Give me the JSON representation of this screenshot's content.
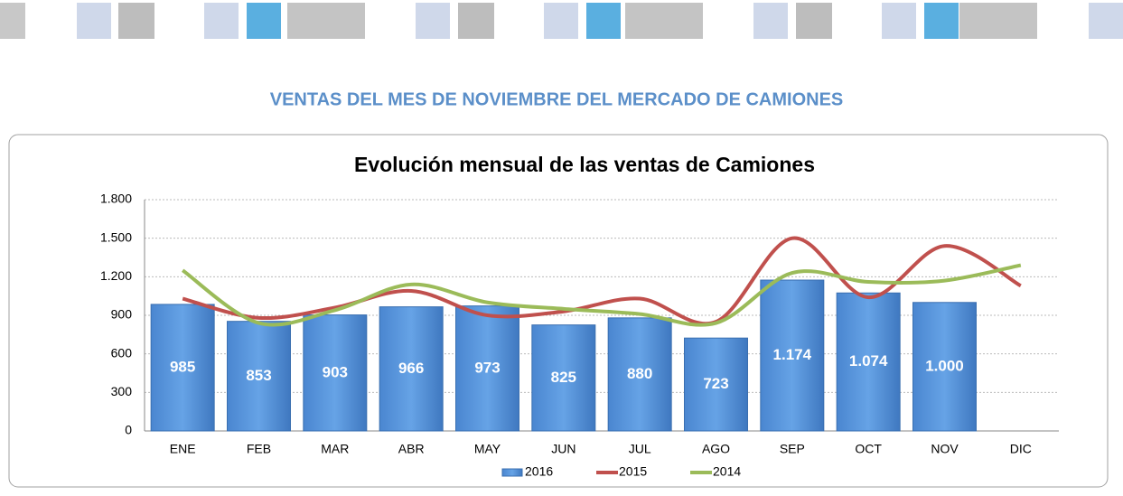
{
  "page_title": "VENTAS DEL MES DE NOVIEMBRE DEL MERCADO DE CAMIONES",
  "chart_data": {
    "type": "bar_line",
    "title": "Evolución mensual de las ventas de Camiones",
    "categories": [
      "ENE",
      "FEB",
      "MAR",
      "ABR",
      "MAY",
      "JUN",
      "JUL",
      "AGO",
      "SEP",
      "OCT",
      "NOV",
      "DIC"
    ],
    "series": [
      {
        "name": "2016",
        "type": "bar",
        "color": "#5b9bd5",
        "values": [
          985,
          853,
          903,
          966,
          973,
          825,
          880,
          723,
          1174,
          1074,
          1000,
          null
        ],
        "value_labels": [
          "985",
          "853",
          "903",
          "966",
          "973",
          "825",
          "880",
          "723",
          "1.174",
          "1.074",
          "1.000",
          null
        ]
      },
      {
        "name": "2015",
        "type": "line",
        "color": "#c0504d",
        "values": [
          1030,
          880,
          960,
          1090,
          900,
          930,
          1030,
          850,
          1500,
          1040,
          1440,
          1130
        ]
      },
      {
        "name": "2014",
        "type": "line",
        "color": "#9bbb59",
        "values": [
          1250,
          840,
          940,
          1140,
          1000,
          950,
          910,
          840,
          1230,
          1160,
          1170,
          1290
        ]
      }
    ],
    "ylim": [
      0,
      1800
    ],
    "yticks": [
      0,
      300,
      600,
      900,
      {
        "value": 1200,
        "label": "1.200"
      },
      {
        "value": 1500,
        "label": "1.500"
      },
      {
        "value": 1800,
        "label": "1.800"
      }
    ],
    "grid": true,
    "legend": "bottom"
  }
}
